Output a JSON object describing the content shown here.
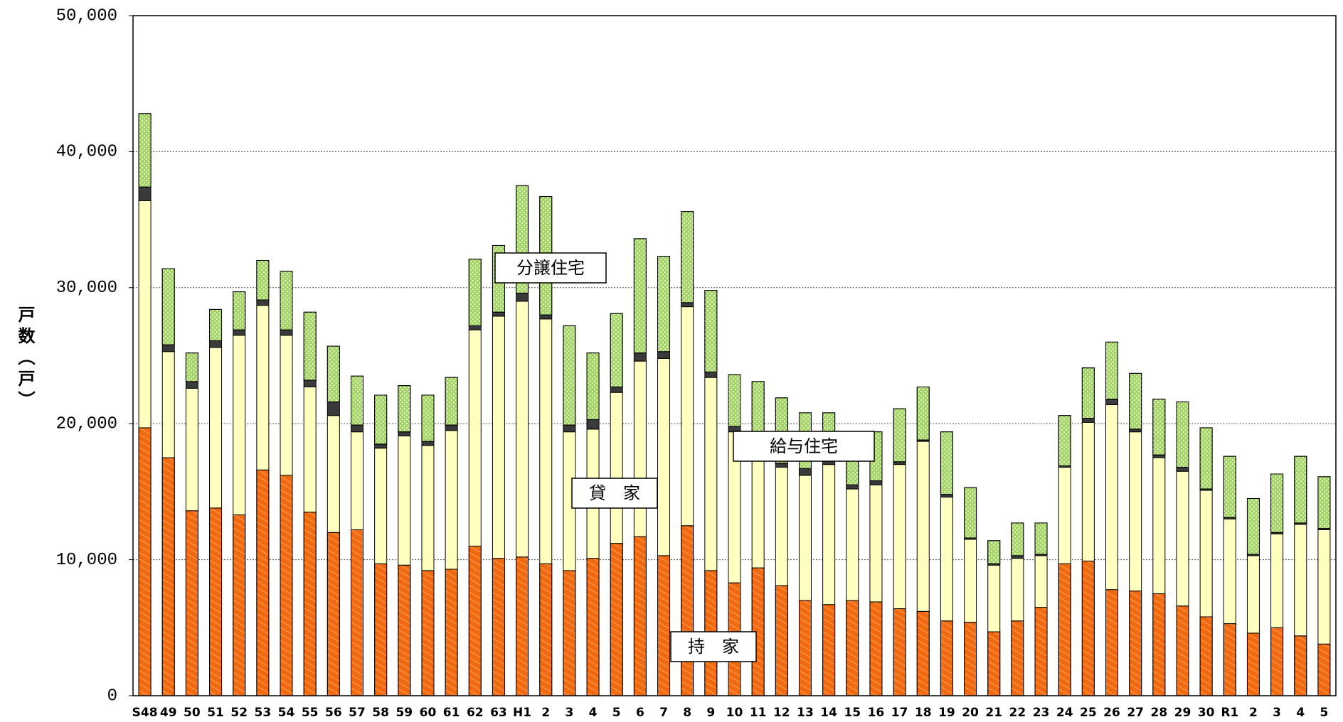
{
  "chart_data": {
    "type": "stacked_bar",
    "y_label": "戸数（戸）",
    "categories": [
      "S48",
      "49",
      "50",
      "51",
      "52",
      "53",
      "54",
      "55",
      "56",
      "57",
      "58",
      "59",
      "60",
      "61",
      "62",
      "63",
      "H1",
      "2",
      "3",
      "4",
      "5",
      "6",
      "7",
      "8",
      "9",
      "10",
      "11",
      "12",
      "13",
      "14",
      "15",
      "16",
      "17",
      "18",
      "19",
      "20",
      "21",
      "22",
      "23",
      "24",
      "25",
      "26",
      "27",
      "28",
      "29",
      "30",
      "R1",
      "2",
      "3",
      "4",
      "5"
    ],
    "series": [
      {
        "name": "持　家",
        "color": "#f26a10",
        "values": [
          19700,
          17500,
          13600,
          13800,
          13300,
          16600,
          16200,
          13500,
          12000,
          12200,
          9700,
          9600,
          9200,
          9300,
          11000,
          10100,
          10200,
          9700,
          9200,
          10100,
          11200,
          11700,
          10300,
          12500,
          9200,
          8300,
          9400,
          8100,
          7000,
          6700,
          7000,
          6900,
          6400,
          6200,
          5500,
          5400,
          4700,
          5500,
          6500,
          9700,
          9900,
          7800,
          7700,
          7500,
          6600,
          5800,
          5300,
          4600,
          5000,
          4400,
          3800
        ]
      },
      {
        "name": "貸　家",
        "color": "#ffffc0",
        "values": [
          16700,
          7800,
          9000,
          11800,
          13200,
          12100,
          10300,
          9200,
          8600,
          7200,
          8500,
          9500,
          9200,
          10200,
          15900,
          17800,
          18800,
          18000,
          10200,
          9500,
          11100,
          12900,
          14500,
          16100,
          14200,
          11100,
          8500,
          8700,
          9200,
          10300,
          8200,
          8600,
          10600,
          12500,
          9100,
          6100,
          4900,
          4600,
          3800,
          7100,
          10200,
          13600,
          11700,
          10000,
          9900,
          9300,
          7700,
          5700,
          6900,
          8200,
          8400
        ]
      },
      {
        "name": "給与住宅",
        "color": "#3a3a3a",
        "values": [
          1000,
          500,
          500,
          500,
          400,
          400,
          400,
          500,
          1000,
          500,
          300,
          300,
          300,
          400,
          300,
          300,
          600,
          300,
          500,
          700,
          400,
          600,
          500,
          300,
          400,
          400,
          400,
          300,
          500,
          400,
          300,
          300,
          200,
          100,
          200,
          100,
          100,
          200,
          100,
          100,
          300,
          400,
          200,
          200,
          300,
          100,
          100,
          100,
          100,
          100,
          100
        ]
      },
      {
        "name": "分譲住宅",
        "color": "#a6d46a",
        "values": [
          5400,
          5600,
          2100,
          2300,
          2800,
          2900,
          4300,
          5000,
          4100,
          3600,
          3600,
          3400,
          3400,
          3500,
          4900,
          4900,
          7900,
          8700,
          7300,
          4900,
          5400,
          8400,
          7000,
          6700,
          6000,
          3800,
          4800,
          4800,
          4100,
          3400,
          3300,
          3600,
          3900,
          3900,
          4600,
          3700,
          1700,
          2400,
          2300,
          3700,
          3700,
          4200,
          4100,
          4100,
          4800,
          4500,
          4500,
          4100,
          4300,
          4900,
          3800
        ]
      }
    ],
    "ylim": [
      0,
      50000
    ],
    "yticks": [
      0,
      {
        "value": 10000,
        "label": "10,000"
      },
      {
        "value": 20000,
        "label": "20,000"
      },
      {
        "value": 30000,
        "label": "30,000"
      },
      {
        "value": 40000,
        "label": "40,000"
      },
      {
        "value": 50000,
        "label": "50,000"
      }
    ],
    "grid": true
  }
}
